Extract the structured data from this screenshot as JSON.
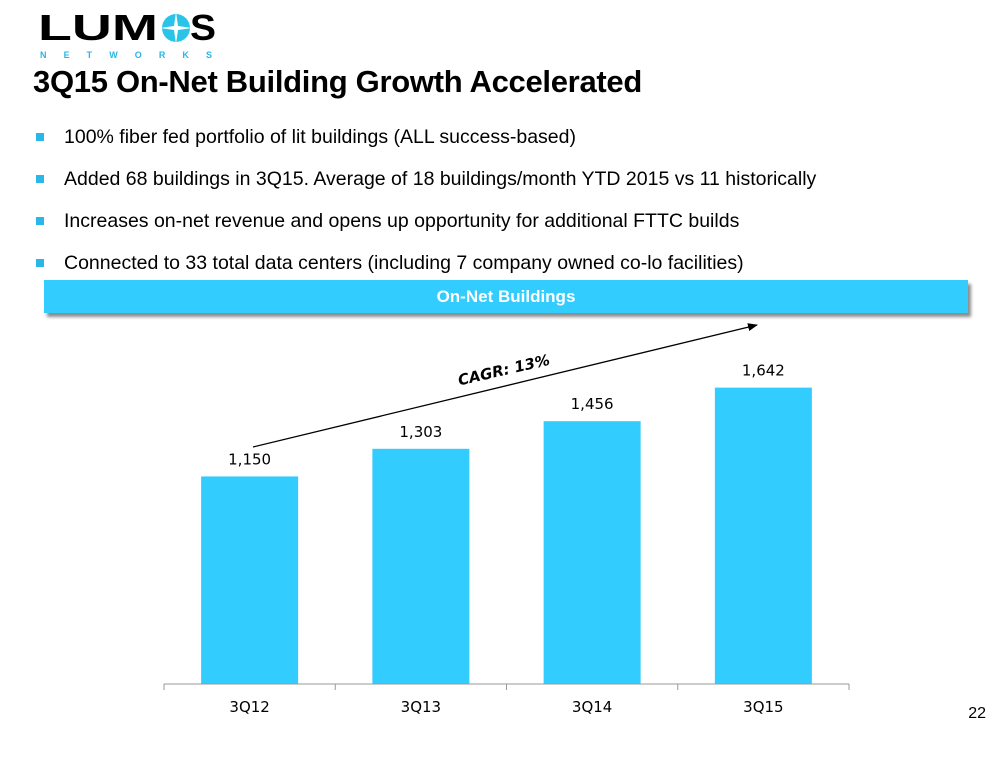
{
  "logo": {
    "text": "LUMOS",
    "subtext": "NETWORKS"
  },
  "title": "3Q15 On-Net Building Growth Accelerated",
  "bullets": [
    "100% fiber fed portfolio of lit buildings (ALL success-based)",
    "Added 68 buildings in 3Q15.  Average of 18 buildings/month YTD 2015 vs 11 historically",
    "Increases on-net revenue and opens up opportunity for additional FTTC builds",
    "Connected to 33 total data centers (including 7 company owned co-lo facilities)"
  ],
  "page_number": "22",
  "colors": {
    "accent": "#33ccff",
    "bullet": "#29b6e8"
  },
  "chart_data": {
    "type": "bar",
    "title": "On-Net Buildings",
    "categories": [
      "3Q12",
      "3Q13",
      "3Q14",
      "3Q15"
    ],
    "values": [
      1150,
      1303,
      1456,
      1642
    ],
    "value_labels": [
      "1,150",
      "1,303",
      "1,456",
      "1,642"
    ],
    "annotation": "CAGR: 13%",
    "xlabel": "",
    "ylabel": "",
    "ylim": [
      0,
      2000
    ],
    "grid": false,
    "bar_color": "#33ccff"
  }
}
